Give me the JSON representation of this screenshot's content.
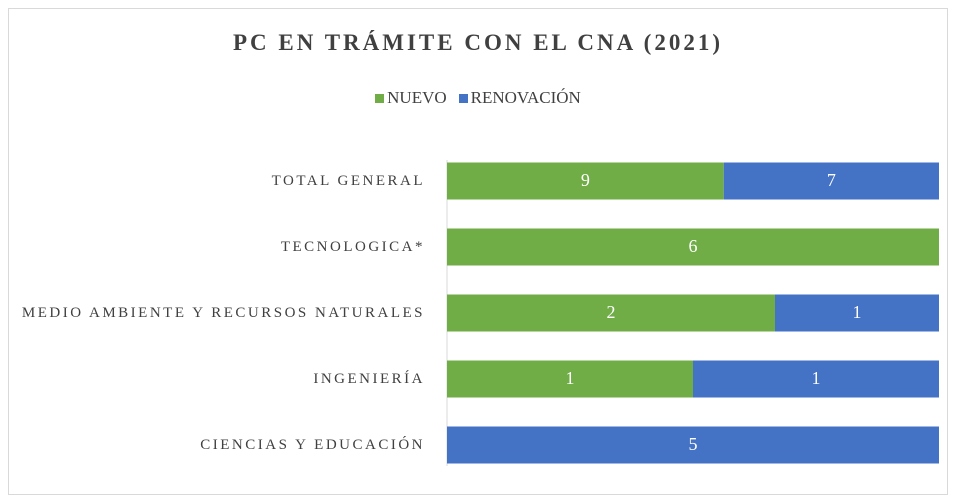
{
  "chart_data": {
    "type": "bar",
    "orientation": "horizontal",
    "stacking": "percent",
    "title": "PC EN TRÁMITE CON EL CNA (2021)",
    "categories": [
      "TOTAL GENERAL",
      "TECNOLOGICA*",
      "MEDIO AMBIENTE Y RECURSOS NATURALES",
      "INGENIERÍA",
      "CIENCIAS Y EDUCACIÓN"
    ],
    "series": [
      {
        "name": "NUEVO",
        "color": "#70ad47",
        "values": [
          9,
          6,
          2,
          1,
          null
        ]
      },
      {
        "name": "RENOVACIÓN",
        "color": "#4472c4",
        "values": [
          7,
          null,
          1,
          1,
          5
        ]
      }
    ],
    "legend": "top"
  }
}
